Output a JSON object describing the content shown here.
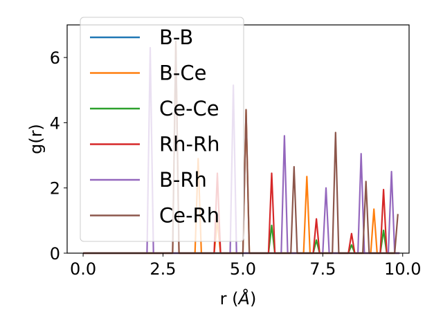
{
  "chart_data": {
    "type": "line",
    "xlabel": "r (",
    "xlabel_unit": "Å",
    "xlabel_close": ")",
    "ylabel": "g(r)",
    "xlim": [
      -0.5,
      10.2
    ],
    "ylim": [
      0,
      7
    ],
    "xticks": [
      0.0,
      2.5,
      5.0,
      7.5,
      10.0
    ],
    "xtick_labels": [
      "0.0",
      "2.5",
      "5.0",
      "7.5",
      "10.0"
    ],
    "yticks": [
      0,
      2,
      4,
      6
    ],
    "ytick_labels": [
      "0",
      "2",
      "4",
      "6"
    ],
    "grid": false,
    "legend_position": "upper-left",
    "peak_half_width": 0.1,
    "series": [
      {
        "name": "B-B",
        "color": "#1f77b4",
        "peaks": []
      },
      {
        "name": "B-Ce",
        "color": "#ff7f0e",
        "peaks": [
          [
            2.9,
            6.5
          ],
          [
            3.6,
            2.9
          ],
          [
            4.2,
            1.0
          ],
          [
            5.1,
            4.4
          ],
          [
            7.0,
            2.35
          ],
          [
            9.1,
            1.35
          ]
        ]
      },
      {
        "name": "Ce-Ce",
        "color": "#2ca02c",
        "peaks": [
          [
            5.9,
            0.85
          ],
          [
            7.3,
            0.4
          ],
          [
            8.4,
            0.25
          ],
          [
            9.4,
            0.7
          ]
        ]
      },
      {
        "name": "Rh-Rh",
        "color": "#d62728",
        "peaks": [
          [
            4.2,
            2.45
          ],
          [
            5.9,
            2.45
          ],
          [
            7.3,
            1.05
          ],
          [
            8.4,
            0.6
          ],
          [
            9.4,
            1.95
          ]
        ]
      },
      {
        "name": "B-Rh",
        "color": "#9467bd",
        "peaks": [
          [
            2.1,
            6.3
          ],
          [
            4.7,
            5.15
          ],
          [
            6.3,
            3.6
          ],
          [
            7.6,
            2.0
          ],
          [
            8.7,
            3.05
          ],
          [
            9.65,
            2.5
          ]
        ]
      },
      {
        "name": "Ce-Rh",
        "color": "#8c564b",
        "peaks": [
          [
            2.9,
            6.5
          ],
          [
            5.1,
            4.4
          ],
          [
            6.6,
            2.65
          ],
          [
            7.9,
            3.7
          ],
          [
            8.85,
            2.2
          ]
        ],
        "tail": [
          [
            9.85,
            1.2
          ]
        ]
      }
    ]
  }
}
